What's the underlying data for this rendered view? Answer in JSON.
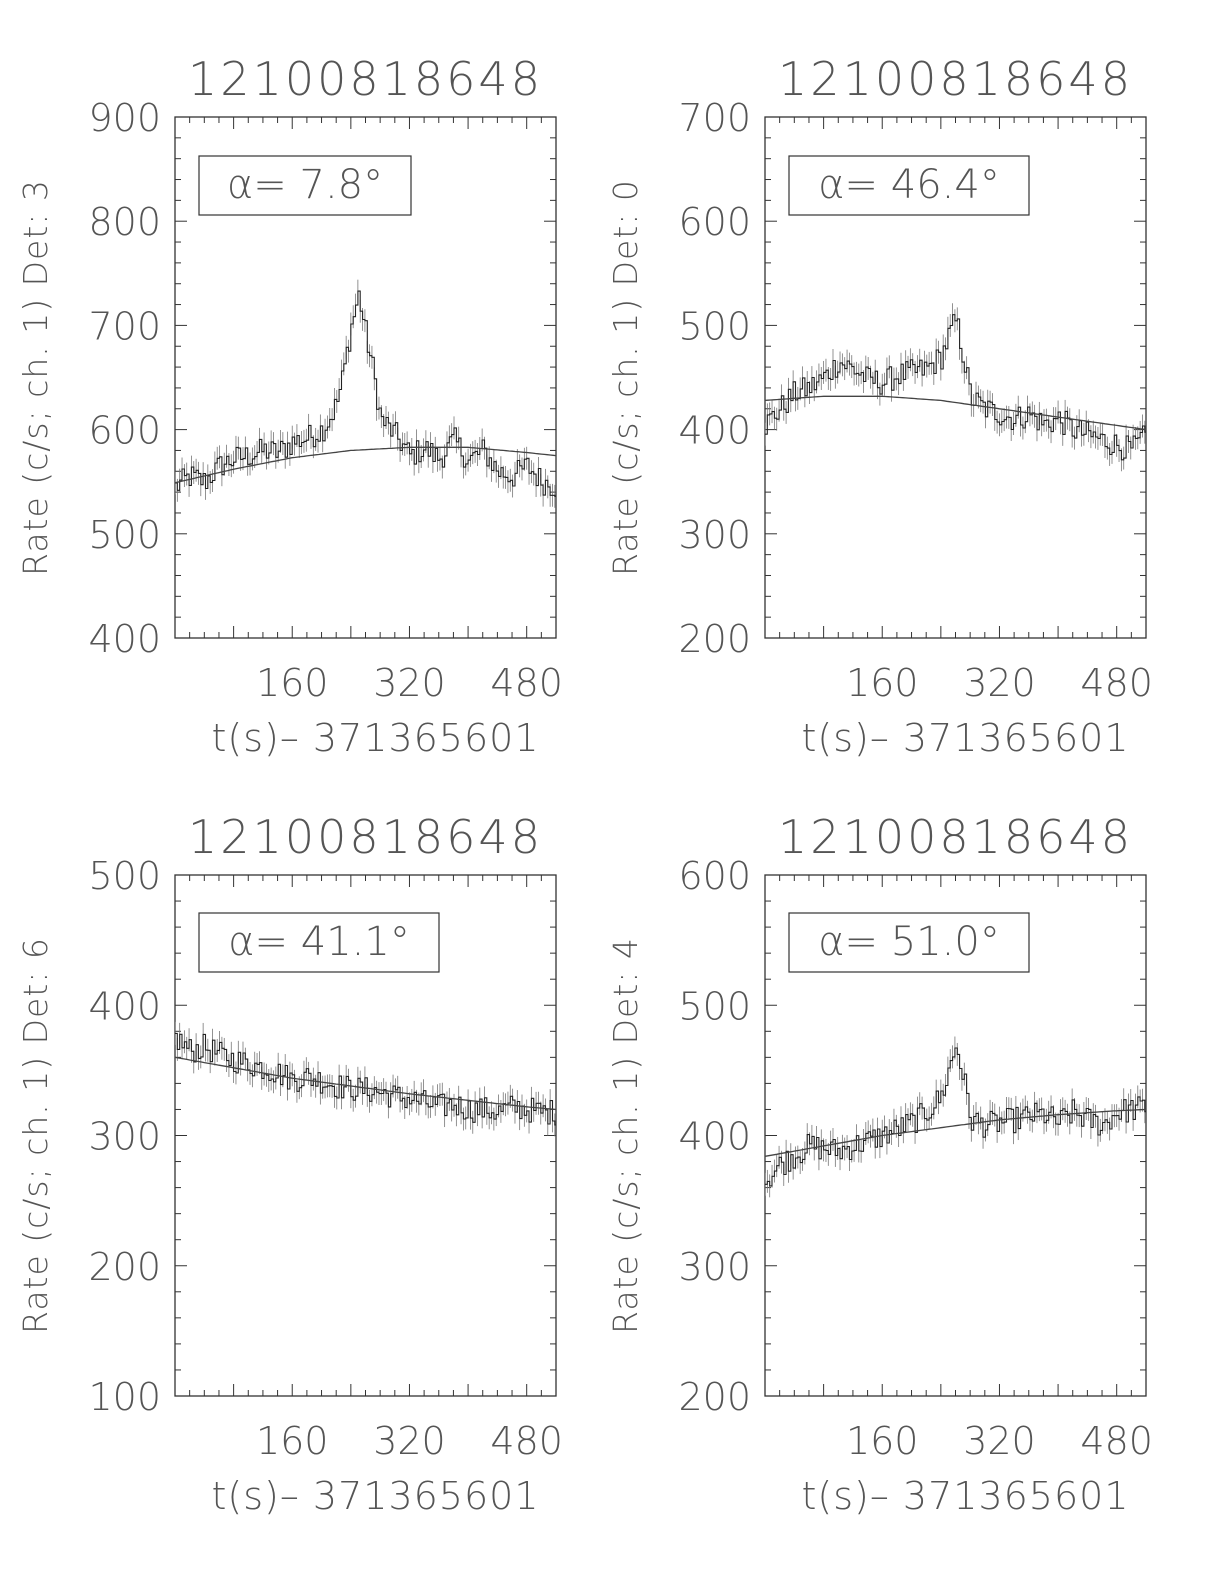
{
  "figure": {
    "title": "",
    "panels": [
      "det3",
      "det0",
      "det6",
      "det4"
    ]
  },
  "chart_data": [
    {
      "type": "line",
      "title": "12100818648",
      "xlabel": "t(s)– 371365601",
      "ylabel": "Rate (c/s; ch. 1) Det: 3",
      "annotation": "α= 7.8°",
      "xlim": [
        0,
        520
      ],
      "ylim": [
        400,
        900
      ],
      "xticks": [
        160,
        320,
        480
      ],
      "yticks": [
        400,
        500,
        600,
        700,
        800,
        900
      ],
      "series": [
        {
          "kind": "data",
          "x": [
            0,
            20,
            40,
            60,
            80,
            100,
            120,
            140,
            160,
            180,
            200,
            210,
            220,
            228,
            235,
            240,
            250,
            260,
            270,
            280,
            300,
            320,
            340,
            360,
            380,
            400,
            420,
            440,
            460,
            480,
            500,
            520
          ],
          "y": [
            545,
            555,
            550,
            565,
            572,
            575,
            580,
            578,
            588,
            592,
            600,
            610,
            625,
            650,
            680,
            700,
            730,
            690,
            655,
            610,
            595,
            575,
            582,
            572,
            590,
            570,
            580,
            560,
            555,
            565,
            550,
            545
          ]
        },
        {
          "kind": "background-fit",
          "x": [
            0,
            80,
            160,
            240,
            320,
            400,
            480,
            520
          ],
          "y": [
            549,
            562,
            573,
            580,
            583,
            583,
            578,
            575
          ]
        }
      ]
    },
    {
      "type": "line",
      "title": "12100818648",
      "xlabel": "t(s)– 371365601",
      "ylabel": "Rate (c/s; ch. 1) Det: 0",
      "annotation": "α= 46.4°",
      "xlim": [
        0,
        520
      ],
      "ylim": [
        200,
        700
      ],
      "xticks": [
        160,
        320,
        480
      ],
      "yticks": [
        200,
        300,
        400,
        500,
        600,
        700
      ],
      "series": [
        {
          "kind": "data",
          "x": [
            0,
            20,
            40,
            60,
            80,
            100,
            120,
            140,
            160,
            180,
            200,
            220,
            240,
            250,
            260,
            270,
            280,
            300,
            320,
            340,
            360,
            380,
            400,
            420,
            440,
            460,
            480,
            500,
            520
          ],
          "y": [
            405,
            420,
            435,
            440,
            450,
            465,
            458,
            448,
            445,
            452,
            455,
            458,
            470,
            490,
            505,
            470,
            430,
            420,
            415,
            410,
            415,
            405,
            410,
            400,
            395,
            390,
            385,
            380,
            395
          ]
        },
        {
          "kind": "background-fit",
          "x": [
            0,
            80,
            160,
            240,
            320,
            400,
            480,
            520
          ],
          "y": [
            428,
            432,
            432,
            428,
            420,
            412,
            404,
            400
          ]
        }
      ]
    },
    {
      "type": "line",
      "title": "12100818648",
      "xlabel": "t(s)– 371365601",
      "ylabel": "Rate (c/s; ch. 1) Det: 6",
      "annotation": "α= 41.1°",
      "xlim": [
        0,
        520
      ],
      "ylim": [
        100,
        500
      ],
      "xticks": [
        160,
        320,
        480
      ],
      "yticks": [
        100,
        200,
        300,
        400,
        500
      ],
      "series": [
        {
          "kind": "data",
          "x": [
            0,
            20,
            40,
            60,
            80,
            100,
            120,
            140,
            160,
            180,
            200,
            220,
            240,
            260,
            280,
            300,
            320,
            340,
            360,
            380,
            400,
            420,
            440,
            460,
            480,
            500,
            520
          ],
          "y": [
            375,
            365,
            368,
            362,
            358,
            355,
            352,
            348,
            343,
            345,
            342,
            338,
            336,
            335,
            333,
            330,
            328,
            325,
            322,
            324,
            320,
            320,
            318,
            322,
            320,
            318,
            318
          ]
        },
        {
          "kind": "background-fit",
          "x": [
            0,
            80,
            160,
            240,
            320,
            400,
            480,
            520
          ],
          "y": [
            360,
            352,
            344,
            338,
            332,
            327,
            322,
            320
          ]
        }
      ]
    },
    {
      "type": "line",
      "title": "12100818648",
      "xlabel": "t(s)– 371365601",
      "ylabel": "Rate (c/s; ch. 1) Det: 4",
      "annotation": "α= 51.0°",
      "xlim": [
        0,
        520
      ],
      "ylim": [
        200,
        600
      ],
      "xticks": [
        160,
        320,
        480
      ],
      "yticks": [
        200,
        300,
        400,
        500,
        600
      ],
      "series": [
        {
          "kind": "data",
          "x": [
            0,
            20,
            40,
            60,
            80,
            100,
            120,
            140,
            160,
            180,
            200,
            220,
            240,
            250,
            260,
            270,
            280,
            300,
            320,
            340,
            360,
            380,
            400,
            420,
            440,
            460,
            480,
            500,
            520
          ],
          "y": [
            365,
            378,
            385,
            392,
            390,
            388,
            392,
            396,
            400,
            405,
            410,
            418,
            430,
            450,
            470,
            445,
            412,
            408,
            410,
            412,
            415,
            416,
            410,
            418,
            412,
            408,
            418,
            420,
            422
          ]
        },
        {
          "kind": "background-fit",
          "x": [
            0,
            80,
            160,
            240,
            320,
            400,
            480,
            520
          ],
          "y": [
            384,
            392,
            400,
            406,
            412,
            416,
            419,
            420
          ]
        }
      ]
    }
  ]
}
